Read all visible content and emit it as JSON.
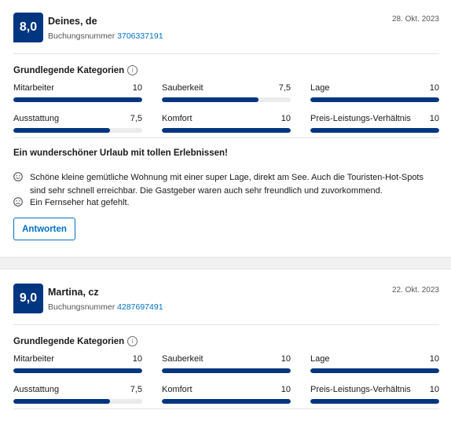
{
  "reviews": [
    {
      "score": "8,0",
      "name": "Deines, de",
      "booking_label": "Buchungsnummer",
      "booking_number": "3706337191",
      "date": "28. Okt. 2023",
      "categories_title": "Grundlegende Kategorien",
      "categories": [
        {
          "label": "Mitarbeiter",
          "score": "10",
          "fraction": 1.0
        },
        {
          "label": "Sauberkeit",
          "score": "7,5",
          "fraction": 0.75
        },
        {
          "label": "Lage",
          "score": "10",
          "fraction": 1.0
        },
        {
          "label": "Ausstattung",
          "score": "7,5",
          "fraction": 0.75
        },
        {
          "label": "Komfort",
          "score": "10",
          "fraction": 1.0
        },
        {
          "label": "Preis-Leistungs-Verhältnis",
          "score": "10",
          "fraction": 1.0
        }
      ],
      "headline": "Ein wunderschöner Urlaub mit tollen Erlebnissen!",
      "positive": "Schöne kleine gemütliche Wohnung mit einer super Lage, direkt am See. Auch die Touristen-Hot-Spots sind sehr schnell erreichbar. Die Gastgeber waren auch sehr freundlich und zuvorkommend.",
      "negative": "Ein Fernseher hat gefehlt.",
      "reply_label": "Antworten"
    },
    {
      "score": "9,0",
      "name": "Martina, cz",
      "booking_label": "Buchungsnummer",
      "booking_number": "4287697491",
      "date": "22. Okt. 2023",
      "categories_title": "Grundlegende Kategorien",
      "categories": [
        {
          "label": "Mitarbeiter",
          "score": "10",
          "fraction": 1.0
        },
        {
          "label": "Sauberkeit",
          "score": "10",
          "fraction": 1.0
        },
        {
          "label": "Lage",
          "score": "10",
          "fraction": 1.0
        },
        {
          "label": "Ausstattung",
          "score": "7,5",
          "fraction": 0.75
        },
        {
          "label": "Komfort",
          "score": "10",
          "fraction": 1.0
        },
        {
          "label": "Preis-Leistungs-Verhältnis",
          "score": "10",
          "fraction": 1.0
        }
      ]
    }
  ],
  "icons": {
    "info": "info-circle-icon",
    "positive": "smiling-face-icon",
    "negative": "frowning-face-icon"
  },
  "colors": {
    "brand": "#003580",
    "link": "#0071c2",
    "bar_track": "#ebebeb"
  }
}
